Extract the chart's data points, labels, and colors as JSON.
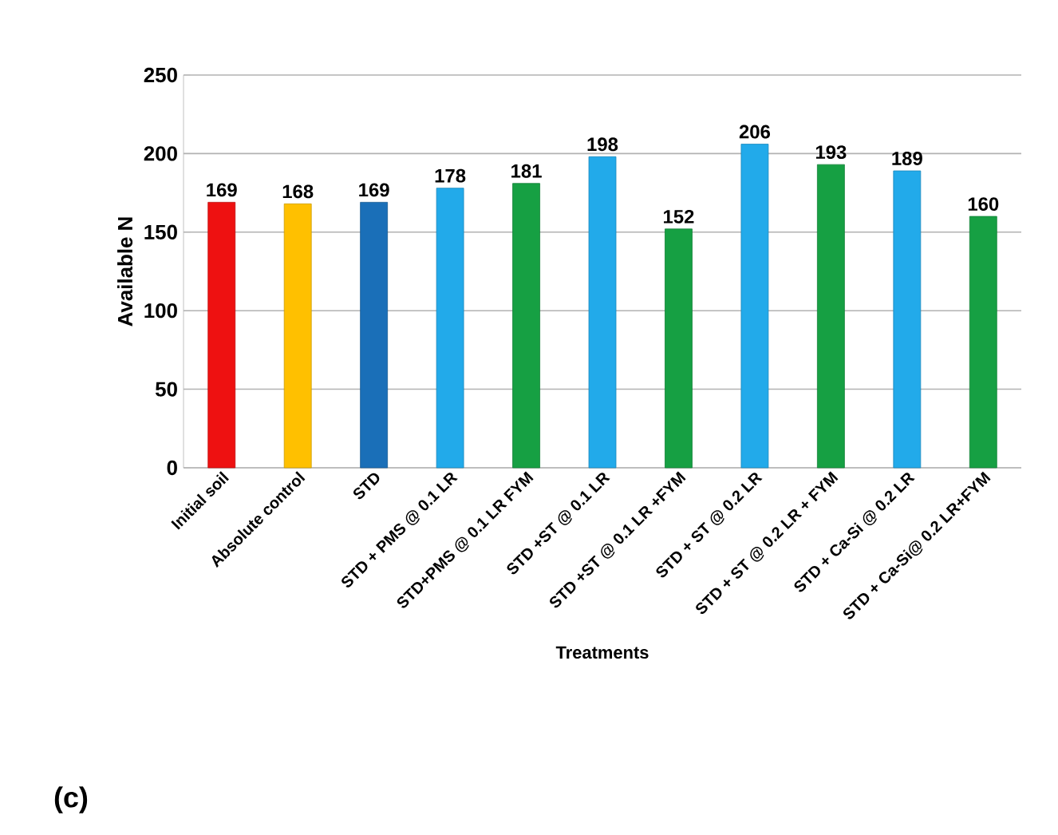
{
  "chart_data": {
    "type": "bar",
    "xlabel": "Treatments",
    "ylabel": "Available N",
    "categories": [
      "Initial soil",
      "Absolute control",
      "STD",
      "STD + PMS @ 0.1 LR",
      "STD+PMS @ 0.1 LR FYM",
      "STD +ST @ 0.1 LR",
      "STD +ST @ 0.1 LR +FYM",
      "STD + ST @ 0.2 LR",
      "STD + ST @ 0.2 LR + FYM",
      "STD + Ca-Si @ 0.2 LR",
      "STD + Ca-Si@ 0.2 LR+FYM"
    ],
    "values": [
      169,
      168,
      169,
      178,
      181,
      198,
      152,
      206,
      193,
      189,
      160
    ],
    "colors": [
      "#ee1111",
      "#ffc000",
      "#1a6fb8",
      "#22aaea",
      "#16a043",
      "#22aaea",
      "#16a043",
      "#22aaea",
      "#16a043",
      "#22aaea",
      "#16a043"
    ],
    "ylim": [
      0,
      250
    ],
    "yticks": [
      0,
      50,
      100,
      150,
      200,
      250
    ],
    "grid": "y",
    "data_labels": true,
    "annotations": [
      "(c)"
    ]
  }
}
